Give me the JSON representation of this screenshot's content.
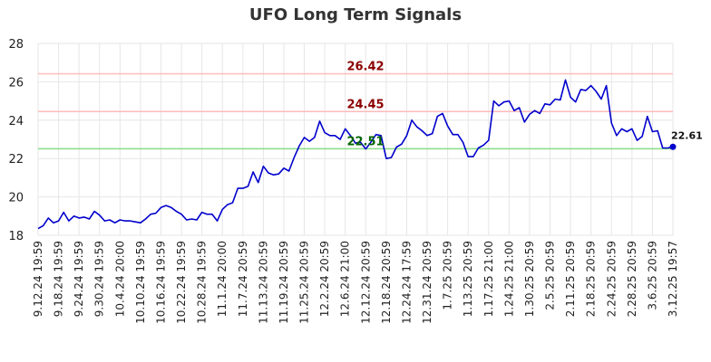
{
  "chart_data": {
    "type": "line",
    "title": "UFO Long Term Signals",
    "xlabel": "",
    "ylabel": "",
    "ylim": [
      18,
      28
    ],
    "yticks": [
      18,
      20,
      22,
      24,
      26,
      28
    ],
    "grid": true,
    "x_tick_labels": [
      "9.12.24 19:59",
      "9.18.24 19:59",
      "9.24.24 19:59",
      "9.30.24 19:59",
      "10.4.24 20:00",
      "10.10.24 19:59",
      "10.16.24 19:59",
      "10.22.24 19:59",
      "10.28.24 19:59",
      "11.1.24 20:00",
      "11.7.24 20:59",
      "11.13.24 20:59",
      "11.19.24 20:59",
      "11.25.24 20:59",
      "12.2.24 20:59",
      "12.6.24 21:00",
      "12.12.24 20:59",
      "12.18.24 20:59",
      "12.24.24 17:59",
      "12.31.24 20:59",
      "1.7.25 20:59",
      "1.13.25 20:59",
      "1.17.25 21:00",
      "1.24.25 21:00",
      "1.30.25 20:59",
      "2.5.25 20:59",
      "2.11.25 20:59",
      "2.18.25 20:59",
      "2.24.25 20:59",
      "2.28.25 20:59",
      "3.6.25 20:59",
      "3.12.25 19:57"
    ],
    "series": [
      {
        "color": "#0000cc",
        "values": [
          18.35,
          18.5,
          18.9,
          18.65,
          18.75,
          19.2,
          18.75,
          19.0,
          18.9,
          18.95,
          18.85,
          19.25,
          19.05,
          18.75,
          18.8,
          18.65,
          18.8,
          18.75,
          18.75,
          18.7,
          18.65,
          18.85,
          19.1,
          19.15,
          19.45,
          19.55,
          19.45,
          19.25,
          19.1,
          18.8,
          18.85,
          18.8,
          19.2,
          19.1,
          19.1,
          18.75,
          19.35,
          19.6,
          19.7,
          20.45,
          20.45,
          20.55,
          21.3,
          20.75,
          21.6,
          21.25,
          21.15,
          21.2,
          21.5,
          21.35,
          22.05,
          22.65,
          23.1,
          22.9,
          23.1,
          23.95,
          23.35,
          23.2,
          23.2,
          23.0,
          23.55,
          23.2,
          22.8,
          22.85,
          22.5,
          22.85,
          23.25,
          23.2,
          22.0,
          22.05,
          22.6,
          22.75,
          23.2,
          24.0,
          23.65,
          23.45,
          23.2,
          23.3,
          24.2,
          24.35,
          23.7,
          23.25,
          23.25,
          22.85,
          22.1,
          22.1,
          22.55,
          22.7,
          22.95,
          25.0,
          24.75,
          24.95,
          25.0,
          24.5,
          24.65,
          23.9,
          24.3,
          24.5,
          24.35,
          24.85,
          24.8,
          25.1,
          25.05,
          26.1,
          25.2,
          24.95,
          25.6,
          25.55,
          25.8,
          25.5,
          25.1,
          25.8,
          23.85,
          23.2,
          23.55,
          23.4,
          23.55,
          22.95,
          23.15,
          24.2,
          23.4,
          23.45,
          22.55,
          22.55,
          22.61
        ]
      }
    ],
    "reference_lines": [
      {
        "value": 26.42,
        "label": "26.42",
        "line_color": "#ffbbbb",
        "text_color": "#8b0000"
      },
      {
        "value": 24.45,
        "label": "24.45",
        "line_color": "#ffbbbb",
        "text_color": "#8b0000"
      },
      {
        "value": 22.51,
        "label": "22.51",
        "line_color": "#88dd88",
        "text_color": "#006400"
      }
    ],
    "last_value_label": "22.61"
  }
}
